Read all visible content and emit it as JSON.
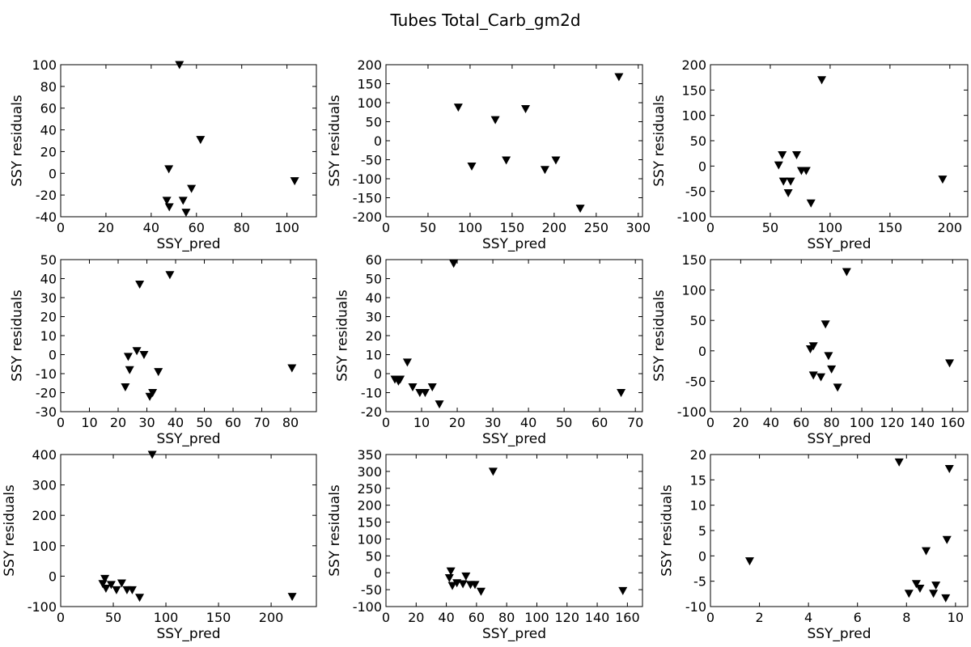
{
  "figure": {
    "title": "Tubes Total_Carb_gm2d"
  },
  "chart_data": [
    {
      "type": "scatter",
      "xlabel": "SSY_pred",
      "ylabel": "SSY residuals",
      "xlim": [
        0,
        113
      ],
      "ylim": [
        -40,
        100
      ],
      "xticks": [
        0,
        20,
        40,
        60,
        80,
        100
      ],
      "yticks": [
        -40,
        -20,
        0,
        20,
        40,
        60,
        80,
        100
      ],
      "marker": "down-triangle",
      "points": [
        [
          52.5,
          100
        ],
        [
          61.8,
          31
        ],
        [
          47.8,
          4
        ],
        [
          103.4,
          -7
        ],
        [
          57.8,
          -14
        ],
        [
          46.9,
          -25
        ],
        [
          54.1,
          -25
        ],
        [
          48.0,
          -31
        ],
        [
          55.4,
          -36
        ]
      ]
    },
    {
      "type": "scatter",
      "xlabel": "SSY_pred",
      "ylabel": "SSY residuals",
      "xlim": [
        0,
        305
      ],
      "ylim": [
        -200,
        200
      ],
      "xticks": [
        0,
        50,
        100,
        150,
        200,
        250,
        300
      ],
      "yticks": [
        -200,
        -150,
        -100,
        -50,
        0,
        50,
        100,
        150,
        200
      ],
      "marker": "down-triangle",
      "points": [
        [
          86,
          88
        ],
        [
          130,
          55
        ],
        [
          166,
          84
        ],
        [
          277,
          168
        ],
        [
          102,
          -67
        ],
        [
          143,
          -51
        ],
        [
          202,
          -51
        ],
        [
          189,
          -76
        ],
        [
          231,
          -178
        ]
      ]
    },
    {
      "type": "scatter",
      "xlabel": "SSY_pred",
      "ylabel": "SSY residuals",
      "xlim": [
        0,
        215
      ],
      "ylim": [
        -100,
        200
      ],
      "xticks": [
        0,
        50,
        100,
        150,
        200
      ],
      "yticks": [
        -100,
        -50,
        0,
        50,
        100,
        150,
        200
      ],
      "marker": "down-triangle",
      "points": [
        [
          93,
          170
        ],
        [
          60,
          22
        ],
        [
          72,
          22
        ],
        [
          57,
          2
        ],
        [
          76,
          -9
        ],
        [
          80,
          -9
        ],
        [
          61,
          -30
        ],
        [
          67,
          -30
        ],
        [
          65,
          -53
        ],
        [
          84,
          -73
        ],
        [
          194,
          -26
        ]
      ]
    },
    {
      "type": "scatter",
      "xlabel": "SSY_pred",
      "ylabel": "SSY residuals",
      "xlim": [
        0,
        89
      ],
      "ylim": [
        -30,
        50
      ],
      "xticks": [
        0,
        10,
        20,
        30,
        40,
        50,
        60,
        70,
        80
      ],
      "yticks": [
        -30,
        -20,
        -10,
        0,
        10,
        20,
        30,
        40,
        50
      ],
      "marker": "down-triangle",
      "points": [
        [
          38,
          42
        ],
        [
          27.5,
          37
        ],
        [
          26.5,
          2
        ],
        [
          23.5,
          -1
        ],
        [
          29,
          0
        ],
        [
          24,
          -8
        ],
        [
          34,
          -9
        ],
        [
          80.5,
          -7
        ],
        [
          22.5,
          -17
        ],
        [
          32,
          -20
        ],
        [
          31,
          -22
        ]
      ]
    },
    {
      "type": "scatter",
      "xlabel": "SSY_pred",
      "ylabel": "SSY residuals",
      "xlim": [
        0,
        72
      ],
      "ylim": [
        -20,
        60
      ],
      "xticks": [
        0,
        10,
        20,
        30,
        40,
        50,
        60,
        70
      ],
      "yticks": [
        -20,
        -10,
        0,
        10,
        20,
        30,
        40,
        50,
        60
      ],
      "marker": "down-triangle",
      "points": [
        [
          19,
          58
        ],
        [
          6,
          6
        ],
        [
          2.5,
          -3
        ],
        [
          3.5,
          -4
        ],
        [
          4,
          -3
        ],
        [
          7.5,
          -7
        ],
        [
          9.5,
          -10
        ],
        [
          11,
          -10
        ],
        [
          13,
          -7
        ],
        [
          15,
          -16
        ],
        [
          66,
          -10
        ]
      ]
    },
    {
      "type": "scatter",
      "xlabel": "SSY_pred",
      "ylabel": "SSY residuals",
      "xlim": [
        0,
        170
      ],
      "ylim": [
        -100,
        150
      ],
      "xticks": [
        0,
        20,
        40,
        60,
        80,
        100,
        120,
        140,
        160
      ],
      "yticks": [
        -100,
        -50,
        0,
        50,
        100,
        150
      ],
      "marker": "down-triangle",
      "points": [
        [
          90,
          130
        ],
        [
          76,
          44
        ],
        [
          68,
          8
        ],
        [
          66,
          3
        ],
        [
          78,
          -8
        ],
        [
          80,
          -30
        ],
        [
          68,
          -40
        ],
        [
          73,
          -43
        ],
        [
          84,
          -60
        ],
        [
          158,
          -20
        ]
      ]
    },
    {
      "type": "scatter",
      "xlabel": "SSY_pred",
      "ylabel": "SSY residuals",
      "xlim": [
        0,
        243
      ],
      "ylim": [
        -100,
        400
      ],
      "xticks": [
        0,
        50,
        100,
        150,
        200
      ],
      "yticks": [
        -100,
        0,
        100,
        200,
        300,
        400
      ],
      "marker": "down-triangle",
      "points": [
        [
          87,
          400
        ],
        [
          42,
          -8
        ],
        [
          40,
          -25
        ],
        [
          48,
          -28
        ],
        [
          58,
          -23
        ],
        [
          43,
          -40
        ],
        [
          53,
          -45
        ],
        [
          63,
          -45
        ],
        [
          68,
          -45
        ],
        [
          75,
          -70
        ],
        [
          220,
          -67
        ]
      ]
    },
    {
      "type": "scatter",
      "xlabel": "SSY_pred",
      "ylabel": "SSY residuals",
      "xlim": [
        0,
        170
      ],
      "ylim": [
        -100,
        350
      ],
      "xticks": [
        0,
        20,
        40,
        60,
        80,
        100,
        120,
        140,
        160
      ],
      "yticks": [
        -100,
        -50,
        0,
        50,
        100,
        150,
        200,
        250,
        300,
        350
      ],
      "marker": "down-triangle",
      "points": [
        [
          71,
          300
        ],
        [
          43,
          5
        ],
        [
          42,
          -15
        ],
        [
          53,
          -10
        ],
        [
          47,
          -30
        ],
        [
          51,
          -33
        ],
        [
          44,
          -38
        ],
        [
          56,
          -35
        ],
        [
          59,
          -35
        ],
        [
          63,
          -55
        ],
        [
          157,
          -53
        ]
      ]
    },
    {
      "type": "scatter",
      "xlabel": "SSY_pred",
      "ylabel": "SSY residuals",
      "xlim": [
        0,
        10.5
      ],
      "ylim": [
        -10,
        20
      ],
      "xticks": [
        0,
        2,
        4,
        6,
        8,
        10
      ],
      "yticks": [
        -10,
        -5,
        0,
        5,
        10,
        15,
        20
      ],
      "marker": "down-triangle",
      "points": [
        [
          7.7,
          18.5
        ],
        [
          9.75,
          17.2
        ],
        [
          9.65,
          3.2
        ],
        [
          8.8,
          1
        ],
        [
          1.6,
          -1
        ],
        [
          8.4,
          -5.5
        ],
        [
          9.2,
          -5.8
        ],
        [
          8.55,
          -6.4
        ],
        [
          8.1,
          -7.4
        ],
        [
          9.1,
          -7.4
        ],
        [
          9.6,
          -8.3
        ]
      ]
    }
  ]
}
